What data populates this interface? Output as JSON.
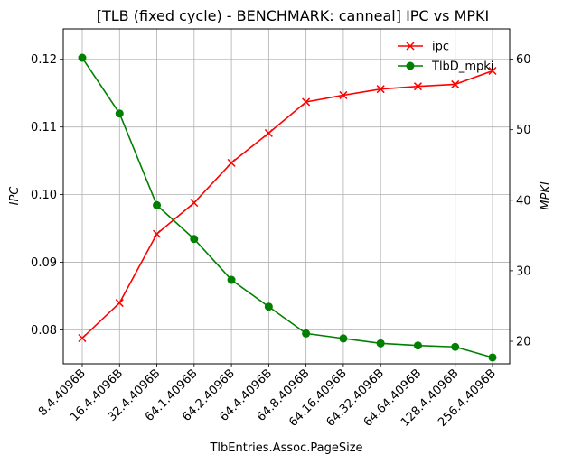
{
  "chart_data": {
    "type": "line",
    "title": "[TLB (fixed cycle) - BENCHMARK: canneal]  IPC vs MPKI",
    "xlabel": "TlbEntries.Assoc.PageSize",
    "ylabel_left": "IPC",
    "ylabel_right": "MPKI",
    "categories": [
      "8.4.4096B",
      "16.4.4096B",
      "32.4.4096B",
      "64.1.4096B",
      "64.2.4096B",
      "64.4.4096B",
      "64.8.4096B",
      "64.16.4096B",
      "64.32.4096B",
      "64.64.4096B",
      "128.4.4096B",
      "256.4.4096B"
    ],
    "ylim_left": [
      0.075,
      0.1245
    ],
    "yticks_left": [
      "0.08",
      "0.09",
      "0.10",
      "0.11",
      "0.12"
    ],
    "ylim_right": [
      16.8,
      64.3
    ],
    "yticks_right": [
      "20",
      "30",
      "40",
      "50",
      "60"
    ],
    "grid": true,
    "legend_position": "top-right",
    "series": [
      {
        "name": "ipc",
        "axis": "left",
        "color": "#ff0000",
        "marker": "x",
        "values": [
          0.0788,
          0.084,
          0.0942,
          0.0988,
          0.1047,
          0.1091,
          0.1137,
          0.1147,
          0.1156,
          0.116,
          0.1163,
          0.1183
        ]
      },
      {
        "name": "TlbD_mpki",
        "axis": "right",
        "color": "#008000",
        "marker": "o",
        "values": [
          60.2,
          52.3,
          39.3,
          34.5,
          28.7,
          24.9,
          21.1,
          20.4,
          19.7,
          19.4,
          19.2,
          17.7
        ]
      }
    ]
  }
}
